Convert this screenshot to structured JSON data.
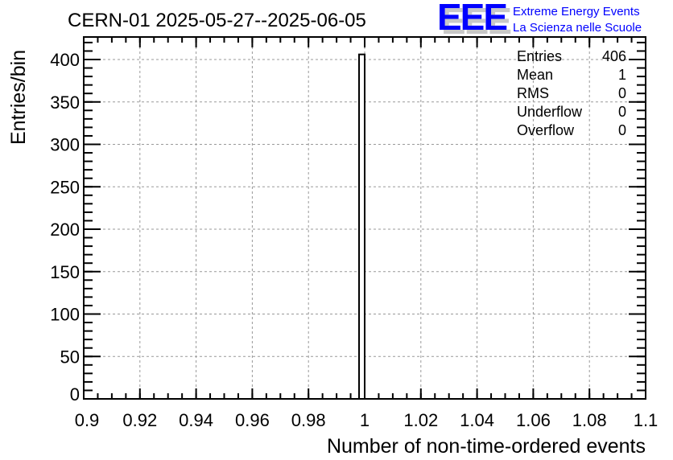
{
  "chart_data": {
    "type": "bar",
    "title": "CERN-01 2025-05-27--2025-06-05",
    "xlabel": "Number of non-time-ordered events",
    "ylabel": "Entries/bin",
    "xlim": [
      0.9,
      1.1
    ],
    "ylim": [
      0,
      425
    ],
    "xticks": [
      "0.9",
      "0.92",
      "0.94",
      "0.96",
      "0.98",
      "1",
      "1.02",
      "1.04",
      "1.06",
      "1.08",
      "1.1"
    ],
    "yticks": [
      "0",
      "50",
      "100",
      "150",
      "200",
      "250",
      "300",
      "350",
      "400"
    ],
    "grid": true,
    "bins": [
      {
        "x_low": 0.998,
        "x_high": 1.0,
        "value": 406
      }
    ],
    "stats": [
      {
        "label": "Entries",
        "value": "406"
      },
      {
        "label": "Mean",
        "value": "1"
      },
      {
        "label": "RMS",
        "value": "0"
      },
      {
        "label": "Underflow",
        "value": "0"
      },
      {
        "label": "Overflow",
        "value": "0"
      }
    ]
  },
  "logo": {
    "text": "EEE",
    "line1": "Extreme Energy Events",
    "line2": "La Scienza nelle Scuole",
    "color": "#0000ff"
  }
}
